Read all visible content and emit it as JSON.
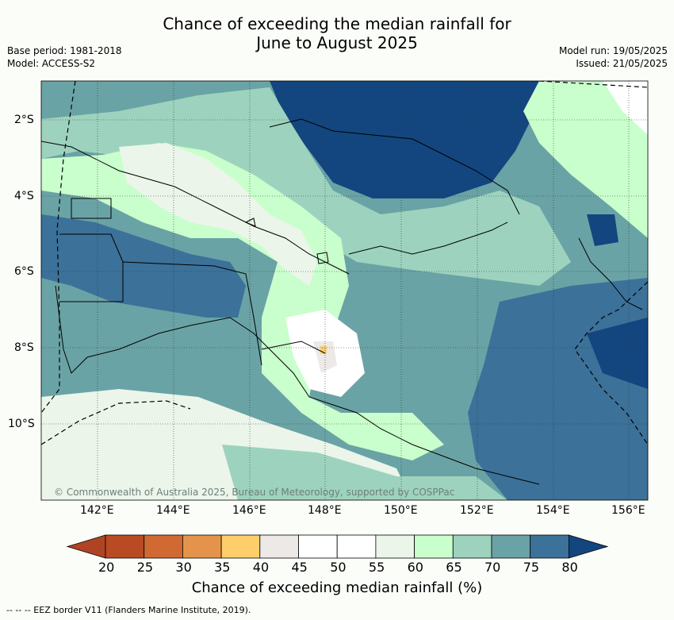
{
  "title_line1": "Chance of exceeding the median rainfall for",
  "title_line2": "June to August 2025",
  "base_period": "Base period: 1981-2018",
  "model": "Model: ACCESS-S2",
  "model_run": "Model run: 19/05/2025",
  "issued": "Issued: 21/05/2025",
  "lat_labels": [
    "2°S",
    "4°S",
    "6°S",
    "8°S",
    "10°S"
  ],
  "lon_labels": [
    "142°E",
    "144°E",
    "146°E",
    "148°E",
    "150°E",
    "152°E",
    "154°E",
    "156°E"
  ],
  "credit": "© Commonwealth of Australia 2025, Bureau of Meteorology, supported by COSPPac",
  "colorbar": {
    "ticks": [
      "20",
      "25",
      "30",
      "35",
      "40",
      "45",
      "50",
      "55",
      "60",
      "65",
      "70",
      "75",
      "80"
    ],
    "colors": [
      "#ae4423",
      "#b94b24",
      "#d06a32",
      "#e4944a",
      "#fdce6a",
      "#ede9e6",
      "#ffffff",
      "#ffffff",
      "#ebf5ea",
      "#c9ffcc",
      "#9dd3be",
      "#6aa3a5",
      "#3c7199",
      "#13467f"
    ],
    "label": "Chance of exceeding median rainfall (%)"
  },
  "footer": "--  --  -- EEZ border V11 (Flanders Marine Institute, 2019)."
}
